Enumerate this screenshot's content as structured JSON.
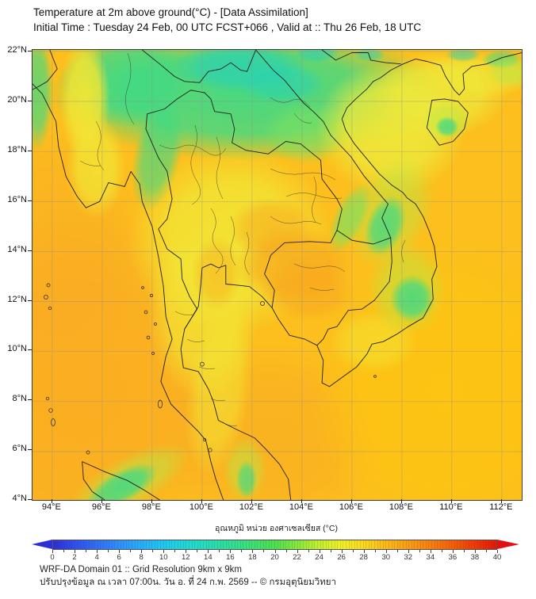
{
  "header": {
    "title": "Temperature at 2m above ground(°C) - [Data Assimilation]",
    "subtitle": "Initial Time : Tuesday 24 Feb, 00 UTC FCST+066 , Valid at :: Thu 26 Feb, 18 UTC"
  },
  "map": {
    "lat_ticks": [
      "22°N",
      "20°N",
      "18°N",
      "16°N",
      "14°N",
      "12°N",
      "10°N",
      "8°N",
      "6°N",
      "4°N"
    ],
    "lon_ticks": [
      "94°E",
      "96°E",
      "98°E",
      "100°E",
      "102°E",
      "104°E",
      "106°E",
      "108°E",
      "110°E",
      "112°E"
    ]
  },
  "colorbar": {
    "label": "อุณหภูมิ หน่วย องศาเซลเซียส (°C)",
    "min": 0,
    "max": 40,
    "tick_step_labeled": 2,
    "tick_labels": [
      "0",
      "2",
      "4",
      "6",
      "8",
      "10",
      "12",
      "14",
      "16",
      "18",
      "20",
      "22",
      "24",
      "26",
      "28",
      "30",
      "32",
      "34",
      "36",
      "38",
      "40"
    ],
    "left_arrow_color": "#2f2fd8",
    "right_arrow_color": "#e31013",
    "stops": [
      {
        "v": 0,
        "c": "#2e2ed6"
      },
      {
        "v": 2,
        "c": "#2e50ee"
      },
      {
        "v": 4,
        "c": "#2e6ff8"
      },
      {
        "v": 6,
        "c": "#2e90fb"
      },
      {
        "v": 8,
        "c": "#27aefb"
      },
      {
        "v": 10,
        "c": "#1fc8f0"
      },
      {
        "v": 12,
        "c": "#1fd8d8"
      },
      {
        "v": 14,
        "c": "#26ddb8"
      },
      {
        "v": 16,
        "c": "#30df97"
      },
      {
        "v": 18,
        "c": "#3ce073"
      },
      {
        "v": 20,
        "c": "#4ce14f"
      },
      {
        "v": 22,
        "c": "#86e83c"
      },
      {
        "v": 24,
        "c": "#c2ef2d"
      },
      {
        "v": 26,
        "c": "#f2ef25"
      },
      {
        "v": 28,
        "c": "#fbd81e"
      },
      {
        "v": 30,
        "c": "#fcba19"
      },
      {
        "v": 32,
        "c": "#fb9d13"
      },
      {
        "v": 34,
        "c": "#f9800e"
      },
      {
        "v": 36,
        "c": "#f55f08"
      },
      {
        "v": 38,
        "c": "#ef3a04"
      },
      {
        "v": 40,
        "c": "#e81604"
      }
    ]
  },
  "footer": {
    "line1": "WRF-DA Domain 01 :: Grid Resolution 9km x 9km",
    "line2": "ปรับปรุงข้อมูล ณ เวลา 07:00น. วัน อ. ที่ 24 ก.พ. 2569 -- © กรมอุตุนิยมวิทยา"
  }
}
